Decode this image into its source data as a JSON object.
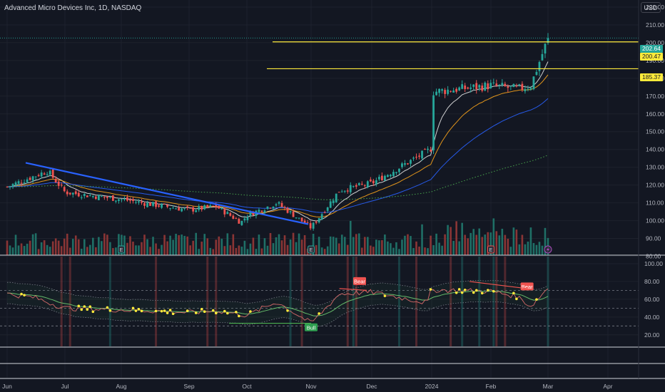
{
  "header": {
    "symbol_title": "Advanced Micro Devices Inc, 1D, NASDAQ",
    "currency_button": "USD"
  },
  "price_labels": {
    "last": "202.64",
    "level_high": "200.47",
    "level_low": "185.37"
  },
  "colors": {
    "background": "#131722",
    "up": "#26a69a",
    "down": "#ef5350",
    "level_line": "#ffeb3b",
    "trendline": "#2962ff",
    "ema_fast": "#e6e6e6",
    "ema_mid": "#f7a21b",
    "sma_slow": "#2962ff",
    "sma_long": "#4caf50",
    "rsi": "#c9c9c9",
    "rsi_ma": "#66bb6a"
  },
  "chart_data": [
    {
      "type": "candlestick",
      "title": "Advanced Micro Devices Inc, 1D, NASDAQ",
      "y_axis": {
        "ticks": [
          80,
          90,
          100,
          110,
          120,
          130,
          140,
          150,
          160,
          170,
          180,
          190,
          200,
          210,
          220
        ],
        "tick_labels": [
          "80.00",
          "90.00",
          "100.00",
          "110.00",
          "120.00",
          "130.00",
          "140.00",
          "150.00",
          "160.00",
          "170.00",
          "180.00",
          "190.00",
          "200.00",
          "210.00",
          "220.00"
        ],
        "range": [
          79,
          224
        ],
        "currency": "USD"
      },
      "x_axis": {
        "tick_labels": [
          "Jun",
          "Jul",
          "Aug",
          "Sep",
          "Oct",
          "Nov",
          "Dec",
          "2024",
          "Feb",
          "Mar",
          "Apr"
        ]
      },
      "grid": true,
      "horizontal_levels": [
        200.47,
        185.37
      ],
      "last_price": 202.64,
      "trendline": {
        "from": {
          "x": "Jun",
          "y": 132.5
        },
        "to": {
          "x": "Nov",
          "y": 98
        }
      },
      "close_path": [
        {
          "x": "Jun",
          "y": 119
        },
        {
          "x": "Jun 15",
          "y": 125
        },
        {
          "x": "Jun 22",
          "y": 128
        },
        {
          "x": "Jul",
          "y": 116
        },
        {
          "x": "Jul 15",
          "y": 114
        },
        {
          "x": "Aug",
          "y": 112
        },
        {
          "x": "Aug 15",
          "y": 109
        },
        {
          "x": "Sep",
          "y": 106
        },
        {
          "x": "Sep 15",
          "y": 108
        },
        {
          "x": "Sep 28",
          "y": 99
        },
        {
          "x": "Oct",
          "y": 103
        },
        {
          "x": "Oct 15",
          "y": 110
        },
        {
          "x": "Nov",
          "y": 96
        },
        {
          "x": "Nov 15",
          "y": 117
        },
        {
          "x": "Dec",
          "y": 121
        },
        {
          "x": "Dec 15",
          "y": 139
        },
        {
          "x": "2024",
          "y": 141
        },
        {
          "x": "Jan 15",
          "y": 160
        },
        {
          "x": "Feb",
          "y": 176
        },
        {
          "x": "Feb 15",
          "y": 174
        },
        {
          "x": "Feb 22",
          "y": 176
        },
        {
          "x": "Mar",
          "y": 202.64
        }
      ],
      "moving_averages": [
        {
          "name": "",
          "color": "#e6e6e6",
          "approx_end": 183
        },
        {
          "name": "",
          "color": "#f7a21b",
          "approx_end": 176
        },
        {
          "name": "",
          "color": "#2962ff",
          "approx_end": 163
        },
        {
          "name": "",
          "color": "#4caf50",
          "approx_end": 129
        }
      ],
      "markers": [
        {
          "type": "E",
          "x": "Aug"
        },
        {
          "type": "E",
          "x": "Nov"
        },
        {
          "type": "E",
          "x": "Feb"
        },
        {
          "type": "lightning",
          "x": "Mar"
        }
      ]
    },
    {
      "type": "line",
      "title": "",
      "y_axis": {
        "ticks": [
          20,
          40,
          60,
          80,
          100
        ],
        "tick_labels": [
          "20.00",
          "40.00",
          "60.00",
          "80.00",
          "100.00"
        ],
        "range": [
          7,
          108
        ]
      },
      "reference_levels": [
        70,
        50,
        30
      ],
      "rsi_path": [
        {
          "x": "Jun",
          "y": 66
        },
        {
          "x": "Jun 15",
          "y": 62
        },
        {
          "x": "Jul",
          "y": 50
        },
        {
          "x": "Aug",
          "y": 48
        },
        {
          "x": "Aug 15",
          "y": 47
        },
        {
          "x": "Sep",
          "y": 45
        },
        {
          "x": "Sep 15",
          "y": 47
        },
        {
          "x": "Oct",
          "y": 42
        },
        {
          "x": "Oct 15",
          "y": 57
        },
        {
          "x": "Nov",
          "y": 33
        },
        {
          "x": "Nov 15",
          "y": 66
        },
        {
          "x": "Dec",
          "y": 68
        },
        {
          "x": "Dec 15",
          "y": 56
        },
        {
          "x": "2024",
          "y": 72
        },
        {
          "x": "Jan 15",
          "y": 76
        },
        {
          "x": "Feb",
          "y": 69
        },
        {
          "x": "Feb 15",
          "y": 63
        },
        {
          "x": "Feb 22",
          "y": 52
        },
        {
          "x": "Mar",
          "y": 73
        }
      ],
      "divergence_labels": [
        {
          "label": "Bull",
          "x": "Nov",
          "y": 28
        },
        {
          "label": "Bear",
          "x": "Nov 25",
          "y": 80
        },
        {
          "label": "Bear",
          "x": "Feb 20",
          "y": 74
        }
      ]
    }
  ]
}
